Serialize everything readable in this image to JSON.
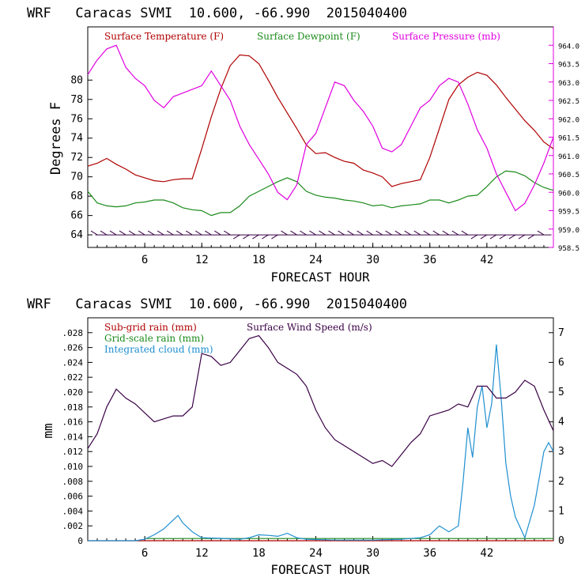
{
  "colors": {
    "temp": "#b00000",
    "dew": "#1a8a1a",
    "press": "#e000e0",
    "wind": "#3a0046",
    "cloud": "#1e8fd0",
    "axis": "#000000"
  },
  "chart_data": [
    {
      "type": "line",
      "title": "WRF   Caracas SVMI  10.600, -66.990  2015040400",
      "xlabel": "FORECAST HOUR",
      "ylabel": "Degrees F",
      "xlim": [
        0,
        49
      ],
      "ylim": [
        62.7,
        85.5
      ],
      "y2lim": [
        958.5,
        964.5
      ],
      "x_ticks": [
        6,
        12,
        18,
        24,
        30,
        36,
        42
      ],
      "y_ticks": [
        64,
        66,
        68,
        70,
        72,
        74,
        76,
        78,
        80
      ],
      "y2_ticks": [
        "958.5",
        "959.0",
        "959.5",
        "960.0",
        "960.5",
        "961.0",
        "961.5",
        "962.0",
        "962.5",
        "963.0",
        "963.5",
        "964.0"
      ],
      "legend": [
        "Surface Temperature (F)",
        "Surface Dewpoint (F)",
        "Surface Pressure (mb)"
      ],
      "series": [
        {
          "name": "Surface Temperature (F)",
          "axis": "left",
          "x": [
            0,
            1,
            2,
            3,
            4,
            5,
            6,
            7,
            8,
            9,
            10,
            11,
            12,
            13,
            14,
            15,
            16,
            17,
            18,
            19,
            20,
            21,
            22,
            23,
            24,
            25,
            26,
            27,
            28,
            29,
            30,
            31,
            32,
            33,
            34,
            35,
            36,
            37,
            38,
            39,
            40,
            41,
            42,
            43,
            44,
            45,
            46,
            47,
            48,
            49
          ],
          "values": [
            71.1,
            71.4,
            71.9,
            71.3,
            70.8,
            70.2,
            69.9,
            69.6,
            69.5,
            69.7,
            69.8,
            69.8,
            72.9,
            76.2,
            79.1,
            81.5,
            82.6,
            82.5,
            81.7,
            80.0,
            78.2,
            76.6,
            75.0,
            73.3,
            72.4,
            72.5,
            72.0,
            71.6,
            71.4,
            70.7,
            70.4,
            70.0,
            69.0,
            69.3,
            69.5,
            69.7,
            72.0,
            75.0,
            78.0,
            79.5,
            80.3,
            80.8,
            80.5,
            79.5,
            78.2,
            77.0,
            75.8,
            74.8,
            73.6,
            72.9
          ]
        },
        {
          "name": "Surface Dewpoint (F)",
          "axis": "left",
          "x": [
            0,
            1,
            2,
            3,
            4,
            5,
            6,
            7,
            8,
            9,
            10,
            11,
            12,
            13,
            14,
            15,
            16,
            17,
            18,
            19,
            20,
            21,
            22,
            23,
            24,
            25,
            26,
            27,
            28,
            29,
            30,
            31,
            32,
            33,
            34,
            35,
            36,
            37,
            38,
            39,
            40,
            41,
            42,
            43,
            44,
            45,
            46,
            47,
            48,
            49
          ],
          "values": [
            68.5,
            67.3,
            67.0,
            66.9,
            67.0,
            67.3,
            67.4,
            67.6,
            67.6,
            67.3,
            66.8,
            66.6,
            66.5,
            66.0,
            66.3,
            66.3,
            67.0,
            68.0,
            68.5,
            69.0,
            69.5,
            69.9,
            69.5,
            68.5,
            68.1,
            67.9,
            67.8,
            67.6,
            67.5,
            67.3,
            67.0,
            67.1,
            66.8,
            67.0,
            67.1,
            67.2,
            67.6,
            67.6,
            67.3,
            67.6,
            68.0,
            68.1,
            69.0,
            70.0,
            70.6,
            70.5,
            70.1,
            69.4,
            68.9,
            68.6
          ]
        },
        {
          "name": "Surface Pressure (mb)",
          "axis": "right",
          "x": [
            0,
            1,
            2,
            3,
            4,
            5,
            6,
            7,
            8,
            9,
            10,
            11,
            12,
            13,
            14,
            15,
            16,
            17,
            18,
            19,
            20,
            21,
            22,
            23,
            24,
            25,
            26,
            27,
            28,
            29,
            30,
            31,
            32,
            33,
            34,
            35,
            36,
            37,
            38,
            39,
            40,
            41,
            42,
            43,
            44,
            45,
            46,
            47,
            48,
            49
          ],
          "values": [
            963.2,
            963.6,
            963.9,
            964.0,
            963.4,
            963.1,
            962.9,
            962.5,
            962.3,
            962.6,
            962.7,
            962.8,
            962.9,
            963.3,
            962.9,
            962.5,
            961.8,
            961.3,
            960.9,
            960.5,
            960.0,
            959.8,
            960.2,
            961.3,
            961.6,
            962.3,
            963.0,
            962.9,
            962.5,
            962.2,
            961.8,
            961.2,
            961.1,
            961.3,
            961.8,
            962.3,
            962.5,
            962.9,
            963.1,
            963.0,
            962.4,
            961.7,
            961.2,
            960.5,
            960.0,
            959.5,
            959.7,
            960.2,
            960.8,
            961.5
          ]
        }
      ],
      "wind_barb_levels": [
        64,
        64.3
      ]
    },
    {
      "type": "line",
      "title": "WRF   Caracas SVMI  10.600, -66.990  2015040400",
      "xlabel": "FORECAST HOUR",
      "ylabel": "mm",
      "xlim": [
        0,
        49
      ],
      "ylim": [
        0,
        0.03
      ],
      "y2lim": [
        0,
        7.5
      ],
      "x_ticks": [
        6,
        12,
        18,
        24,
        30,
        36,
        42
      ],
      "y_ticks": [
        "0",
        ".002",
        ".004",
        ".006",
        ".008",
        ".010",
        ".012",
        ".014",
        ".016",
        ".018",
        ".020",
        ".022",
        ".024",
        ".026",
        ".028"
      ],
      "y2_ticks": [
        "0",
        "1",
        "2",
        "3",
        "4",
        "5",
        "6",
        "7"
      ],
      "legend": [
        "Sub-grid rain (mm)",
        "Grid-scale rain (mm)",
        "Integrated cloud (mm)",
        "Surface Wind Speed (m/s)"
      ],
      "series": [
        {
          "name": "Sub-grid rain (mm)",
          "axis": "left",
          "x": [
            0,
            49
          ],
          "values": [
            0,
            0
          ]
        },
        {
          "name": "Grid-scale rain (mm)",
          "axis": "left",
          "x": [
            6,
            49
          ],
          "values": [
            0.0003,
            0.0003
          ]
        },
        {
          "name": "Integrated cloud (mm)",
          "axis": "right",
          "x": [
            0,
            2,
            5,
            6,
            7,
            8,
            9,
            9.5,
            10,
            11,
            12,
            14,
            16,
            17,
            18,
            19,
            20,
            21,
            22,
            23,
            26,
            30,
            33,
            35,
            36,
            37,
            38,
            39,
            39.5,
            40,
            40.5,
            41,
            41.5,
            42,
            42.5,
            43,
            43.5,
            44,
            44.5,
            45,
            46,
            47,
            48,
            48.5,
            49
          ],
          "values": [
            0,
            0,
            0,
            0.05,
            0.2,
            0.4,
            0.7,
            0.85,
            0.6,
            0.3,
            0.1,
            0.08,
            0.05,
            0.1,
            0.2,
            0.18,
            0.15,
            0.25,
            0.1,
            0.05,
            0.02,
            0.02,
            0.05,
            0.1,
            0.2,
            0.5,
            0.3,
            0.5,
            2.0,
            3.8,
            2.8,
            4.5,
            5.2,
            3.8,
            4.6,
            6.6,
            4.8,
            2.6,
            1.5,
            0.8,
            0.1,
            1.2,
            3.0,
            3.3,
            3.0
          ]
        },
        {
          "name": "Surface Wind Speed (m/s)",
          "axis": "right",
          "x": [
            0,
            1,
            2,
            3,
            4,
            5,
            6,
            7,
            8,
            9,
            10,
            11,
            12,
            13,
            14,
            15,
            16,
            17,
            18,
            19,
            20,
            21,
            22,
            23,
            24,
            25,
            26,
            27,
            28,
            29,
            30,
            31,
            32,
            33,
            34,
            35,
            36,
            37,
            38,
            39,
            40,
            41,
            42,
            43,
            44,
            45,
            46,
            47,
            48,
            49
          ],
          "values": [
            3.1,
            3.6,
            4.5,
            5.1,
            4.8,
            4.6,
            4.3,
            4.0,
            4.1,
            4.2,
            4.2,
            4.5,
            6.3,
            6.2,
            5.9,
            6.0,
            6.4,
            6.8,
            6.9,
            6.5,
            6.0,
            5.8,
            5.6,
            5.2,
            4.4,
            3.8,
            3.4,
            3.2,
            3.0,
            2.8,
            2.6,
            2.7,
            2.5,
            2.9,
            3.3,
            3.6,
            4.2,
            4.3,
            4.4,
            4.6,
            4.5,
            5.2,
            5.2,
            4.8,
            4.8,
            5.0,
            5.4,
            5.2,
            4.4,
            3.7
          ]
        }
      ]
    }
  ]
}
